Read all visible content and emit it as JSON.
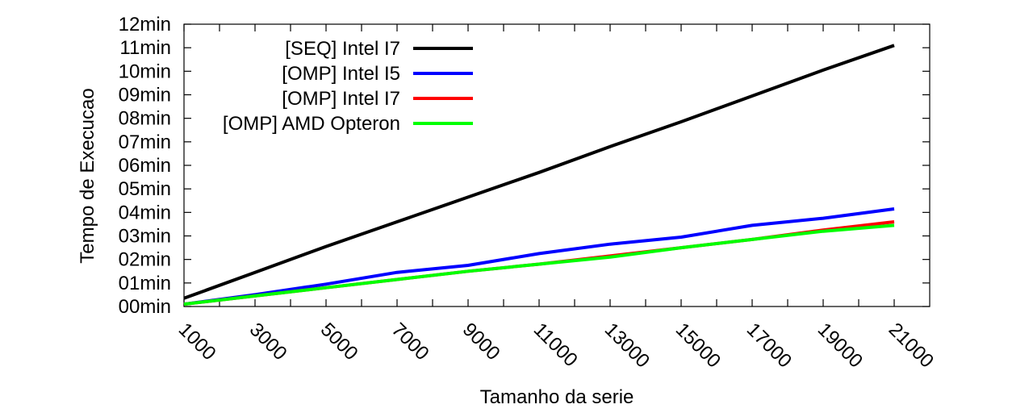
{
  "chart_data": {
    "type": "line",
    "xlabel": "Tamanho da serie",
    "ylabel": "Tempo de Execucao",
    "xlim": [
      1000,
      22000
    ],
    "ylim": [
      0,
      12
    ],
    "x_ticks": [
      1000,
      3000,
      5000,
      7000,
      9000,
      11000,
      13000,
      15000,
      17000,
      19000,
      21000
    ],
    "x_tick_labels": [
      "1000",
      "3000",
      "5000",
      "7000",
      "9000",
      "11000",
      "13000",
      "15000",
      "17000",
      "19000",
      "21000"
    ],
    "y_ticks": [
      0,
      1,
      2,
      3,
      4,
      5,
      6,
      7,
      8,
      9,
      10,
      11,
      12
    ],
    "y_tick_labels": [
      "00min",
      "01min",
      "02min",
      "03min",
      "04min",
      "05min",
      "06min",
      "07min",
      "08min",
      "09min",
      "10min",
      "11min",
      "12min"
    ],
    "x": [
      1000,
      3000,
      5000,
      7000,
      9000,
      11000,
      13000,
      15000,
      17000,
      19000,
      21000
    ],
    "legend_position": "top-left",
    "grid": false,
    "series": [
      {
        "name": "[SEQ] Intel I7",
        "color": "#000000",
        "values": [
          0.35,
          1.45,
          2.55,
          3.6,
          4.65,
          5.7,
          6.8,
          7.85,
          8.95,
          10.05,
          11.1
        ]
      },
      {
        "name": "[OMP] Intel I5",
        "color": "#0000ff",
        "values": [
          0.1,
          0.5,
          0.95,
          1.45,
          1.75,
          2.25,
          2.65,
          2.95,
          3.45,
          3.75,
          4.15
        ]
      },
      {
        "name": "[OMP] Intel I7",
        "color": "#ff0000",
        "values": [
          0.1,
          0.45,
          0.8,
          1.15,
          1.5,
          1.8,
          2.15,
          2.5,
          2.85,
          3.25,
          3.6
        ]
      },
      {
        "name": "[OMP] AMD Opteron",
        "color": "#00ff00",
        "values": [
          0.1,
          0.45,
          0.8,
          1.15,
          1.5,
          1.8,
          2.1,
          2.5,
          2.85,
          3.2,
          3.45
        ]
      }
    ]
  }
}
